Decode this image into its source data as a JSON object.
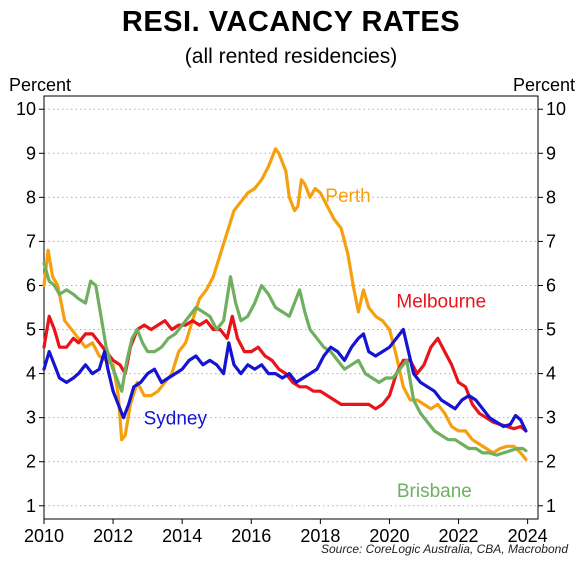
{
  "title": "RESI. VACANCY RATES",
  "subtitle": "(all rented residencies)",
  "y_axis_label_left": "Percent",
  "y_axis_label_right": "Percent",
  "source": "Source: CoreLogic Australia, CBA, Macrobond",
  "chart_data": {
    "type": "line",
    "xlim": [
      2010,
      2024.3
    ],
    "ylim": [
      0.7,
      10.3
    ],
    "x_ticks": [
      2010,
      2012,
      2014,
      2016,
      2018,
      2020,
      2022,
      2024
    ],
    "y_ticks": [
      1,
      2,
      3,
      4,
      5,
      6,
      7,
      8,
      9,
      10
    ],
    "grid": "horizontal dotted",
    "series": [
      {
        "name": "Perth",
        "color": "#F5A00F",
        "label_at": [
          2018.8,
          7.9
        ],
        "points": [
          [
            2010.0,
            6.0
          ],
          [
            2010.12,
            6.8
          ],
          [
            2010.25,
            6.2
          ],
          [
            2010.4,
            6.0
          ],
          [
            2010.6,
            5.2
          ],
          [
            2010.8,
            5.0
          ],
          [
            2011.0,
            4.8
          ],
          [
            2011.2,
            4.6
          ],
          [
            2011.4,
            4.7
          ],
          [
            2011.6,
            4.4
          ],
          [
            2011.8,
            4.3
          ],
          [
            2012.0,
            4.2
          ],
          [
            2012.15,
            3.5
          ],
          [
            2012.25,
            2.5
          ],
          [
            2012.35,
            2.6
          ],
          [
            2012.5,
            3.3
          ],
          [
            2012.7,
            3.8
          ],
          [
            2012.9,
            3.5
          ],
          [
            2013.1,
            3.5
          ],
          [
            2013.3,
            3.6
          ],
          [
            2013.5,
            3.8
          ],
          [
            2013.7,
            4.0
          ],
          [
            2013.9,
            4.5
          ],
          [
            2014.1,
            4.7
          ],
          [
            2014.3,
            5.2
          ],
          [
            2014.5,
            5.7
          ],
          [
            2014.7,
            5.9
          ],
          [
            2014.9,
            6.2
          ],
          [
            2015.1,
            6.7
          ],
          [
            2015.3,
            7.2
          ],
          [
            2015.5,
            7.7
          ],
          [
            2015.7,
            7.9
          ],
          [
            2015.9,
            8.1
          ],
          [
            2016.1,
            8.2
          ],
          [
            2016.3,
            8.4
          ],
          [
            2016.5,
            8.7
          ],
          [
            2016.7,
            9.1
          ],
          [
            2016.8,
            9.0
          ],
          [
            2017.0,
            8.6
          ],
          [
            2017.1,
            8.0
          ],
          [
            2017.25,
            7.7
          ],
          [
            2017.35,
            7.8
          ],
          [
            2017.45,
            8.4
          ],
          [
            2017.55,
            8.3
          ],
          [
            2017.7,
            8.0
          ],
          [
            2017.85,
            8.2
          ],
          [
            2018.0,
            8.1
          ],
          [
            2018.2,
            7.8
          ],
          [
            2018.4,
            7.5
          ],
          [
            2018.6,
            7.3
          ],
          [
            2018.8,
            6.7
          ],
          [
            2018.95,
            6.0
          ],
          [
            2019.1,
            5.4
          ],
          [
            2019.25,
            5.9
          ],
          [
            2019.4,
            5.5
          ],
          [
            2019.6,
            5.3
          ],
          [
            2019.8,
            5.2
          ],
          [
            2020.0,
            5.0
          ],
          [
            2020.2,
            4.4
          ],
          [
            2020.4,
            3.7
          ],
          [
            2020.6,
            3.4
          ],
          [
            2020.8,
            3.4
          ],
          [
            2021.0,
            3.3
          ],
          [
            2021.2,
            3.2
          ],
          [
            2021.4,
            3.3
          ],
          [
            2021.6,
            3.1
          ],
          [
            2021.8,
            2.8
          ],
          [
            2022.0,
            2.7
          ],
          [
            2022.2,
            2.7
          ],
          [
            2022.4,
            2.5
          ],
          [
            2022.6,
            2.4
          ],
          [
            2022.8,
            2.3
          ],
          [
            2023.0,
            2.2
          ],
          [
            2023.2,
            2.3
          ],
          [
            2023.4,
            2.35
          ],
          [
            2023.6,
            2.35
          ],
          [
            2023.8,
            2.2
          ],
          [
            2023.95,
            2.05
          ]
        ]
      },
      {
        "name": "Melbourne",
        "color": "#E8141A",
        "label_at": [
          2021.5,
          5.5
        ],
        "points": [
          [
            2010.0,
            4.6
          ],
          [
            2010.15,
            5.3
          ],
          [
            2010.3,
            5.0
          ],
          [
            2010.45,
            4.6
          ],
          [
            2010.65,
            4.6
          ],
          [
            2010.85,
            4.8
          ],
          [
            2011.0,
            4.7
          ],
          [
            2011.2,
            4.9
          ],
          [
            2011.4,
            4.9
          ],
          [
            2011.6,
            4.7
          ],
          [
            2011.8,
            4.5
          ],
          [
            2012.0,
            4.3
          ],
          [
            2012.2,
            4.2
          ],
          [
            2012.35,
            4.0
          ],
          [
            2012.5,
            4.6
          ],
          [
            2012.7,
            5.0
          ],
          [
            2012.9,
            5.1
          ],
          [
            2013.1,
            5.0
          ],
          [
            2013.3,
            5.1
          ],
          [
            2013.5,
            5.2
          ],
          [
            2013.7,
            5.0
          ],
          [
            2013.9,
            5.1
          ],
          [
            2014.1,
            5.1
          ],
          [
            2014.3,
            5.2
          ],
          [
            2014.5,
            5.1
          ],
          [
            2014.7,
            5.2
          ],
          [
            2014.9,
            5.0
          ],
          [
            2015.1,
            5.0
          ],
          [
            2015.3,
            4.8
          ],
          [
            2015.45,
            5.3
          ],
          [
            2015.6,
            4.8
          ],
          [
            2015.8,
            4.5
          ],
          [
            2016.0,
            4.5
          ],
          [
            2016.2,
            4.6
          ],
          [
            2016.4,
            4.4
          ],
          [
            2016.6,
            4.3
          ],
          [
            2016.8,
            4.1
          ],
          [
            2017.0,
            4.0
          ],
          [
            2017.2,
            3.8
          ],
          [
            2017.4,
            3.7
          ],
          [
            2017.6,
            3.7
          ],
          [
            2017.8,
            3.6
          ],
          [
            2018.0,
            3.6
          ],
          [
            2018.2,
            3.5
          ],
          [
            2018.4,
            3.4
          ],
          [
            2018.6,
            3.3
          ],
          [
            2018.8,
            3.3
          ],
          [
            2019.0,
            3.3
          ],
          [
            2019.2,
            3.3
          ],
          [
            2019.4,
            3.3
          ],
          [
            2019.6,
            3.2
          ],
          [
            2019.8,
            3.3
          ],
          [
            2020.0,
            3.5
          ],
          [
            2020.2,
            4.0
          ],
          [
            2020.4,
            4.3
          ],
          [
            2020.6,
            4.3
          ],
          [
            2020.8,
            4.0
          ],
          [
            2021.0,
            4.2
          ],
          [
            2021.2,
            4.6
          ],
          [
            2021.4,
            4.8
          ],
          [
            2021.6,
            4.5
          ],
          [
            2021.8,
            4.2
          ],
          [
            2022.0,
            3.8
          ],
          [
            2022.2,
            3.7
          ],
          [
            2022.4,
            3.3
          ],
          [
            2022.6,
            3.1
          ],
          [
            2022.8,
            3.0
          ],
          [
            2023.0,
            2.9
          ],
          [
            2023.2,
            2.85
          ],
          [
            2023.4,
            2.8
          ],
          [
            2023.6,
            2.75
          ],
          [
            2023.8,
            2.8
          ],
          [
            2023.95,
            2.7
          ]
        ]
      },
      {
        "name": "Brisbane",
        "color": "#6FAF5F",
        "label_at": [
          2021.3,
          1.2
        ],
        "points": [
          [
            2010.0,
            6.5
          ],
          [
            2010.15,
            6.1
          ],
          [
            2010.3,
            6.0
          ],
          [
            2010.45,
            5.8
          ],
          [
            2010.65,
            5.9
          ],
          [
            2010.85,
            5.8
          ],
          [
            2011.0,
            5.7
          ],
          [
            2011.2,
            5.6
          ],
          [
            2011.35,
            6.1
          ],
          [
            2011.5,
            6.0
          ],
          [
            2011.65,
            5.3
          ],
          [
            2011.8,
            4.6
          ],
          [
            2011.95,
            4.2
          ],
          [
            2012.1,
            3.9
          ],
          [
            2012.25,
            3.6
          ],
          [
            2012.4,
            4.3
          ],
          [
            2012.55,
            4.8
          ],
          [
            2012.7,
            5.0
          ],
          [
            2012.85,
            4.7
          ],
          [
            2013.0,
            4.5
          ],
          [
            2013.2,
            4.5
          ],
          [
            2013.4,
            4.6
          ],
          [
            2013.6,
            4.8
          ],
          [
            2013.8,
            4.9
          ],
          [
            2014.0,
            5.1
          ],
          [
            2014.2,
            5.3
          ],
          [
            2014.4,
            5.5
          ],
          [
            2014.6,
            5.4
          ],
          [
            2014.8,
            5.3
          ],
          [
            2015.0,
            5.0
          ],
          [
            2015.2,
            5.2
          ],
          [
            2015.4,
            6.2
          ],
          [
            2015.55,
            5.6
          ],
          [
            2015.7,
            5.2
          ],
          [
            2015.9,
            5.3
          ],
          [
            2016.1,
            5.6
          ],
          [
            2016.3,
            6.0
          ],
          [
            2016.5,
            5.8
          ],
          [
            2016.7,
            5.5
          ],
          [
            2016.9,
            5.4
          ],
          [
            2017.1,
            5.3
          ],
          [
            2017.3,
            5.7
          ],
          [
            2017.4,
            5.9
          ],
          [
            2017.55,
            5.4
          ],
          [
            2017.7,
            5.0
          ],
          [
            2017.9,
            4.8
          ],
          [
            2018.1,
            4.6
          ],
          [
            2018.3,
            4.5
          ],
          [
            2018.5,
            4.3
          ],
          [
            2018.7,
            4.1
          ],
          [
            2018.9,
            4.2
          ],
          [
            2019.1,
            4.3
          ],
          [
            2019.3,
            4.0
          ],
          [
            2019.5,
            3.9
          ],
          [
            2019.7,
            3.8
          ],
          [
            2019.9,
            3.9
          ],
          [
            2020.1,
            3.9
          ],
          [
            2020.3,
            4.1
          ],
          [
            2020.5,
            4.3
          ],
          [
            2020.7,
            3.4
          ],
          [
            2020.9,
            3.1
          ],
          [
            2021.1,
            2.9
          ],
          [
            2021.3,
            2.7
          ],
          [
            2021.5,
            2.6
          ],
          [
            2021.7,
            2.5
          ],
          [
            2021.9,
            2.5
          ],
          [
            2022.1,
            2.4
          ],
          [
            2022.3,
            2.3
          ],
          [
            2022.5,
            2.3
          ],
          [
            2022.7,
            2.2
          ],
          [
            2022.9,
            2.2
          ],
          [
            2023.1,
            2.15
          ],
          [
            2023.3,
            2.2
          ],
          [
            2023.5,
            2.25
          ],
          [
            2023.7,
            2.3
          ],
          [
            2023.85,
            2.3
          ],
          [
            2023.95,
            2.25
          ]
        ]
      },
      {
        "name": "Sydney",
        "color": "#1414D2",
        "label_at": [
          2013.8,
          2.85
        ],
        "points": [
          [
            2010.0,
            4.1
          ],
          [
            2010.15,
            4.5
          ],
          [
            2010.3,
            4.2
          ],
          [
            2010.45,
            3.9
          ],
          [
            2010.65,
            3.8
          ],
          [
            2010.85,
            3.9
          ],
          [
            2011.0,
            4.0
          ],
          [
            2011.2,
            4.2
          ],
          [
            2011.4,
            4.0
          ],
          [
            2011.6,
            4.1
          ],
          [
            2011.75,
            4.5
          ],
          [
            2011.85,
            4.1
          ],
          [
            2012.0,
            3.6
          ],
          [
            2012.15,
            3.3
          ],
          [
            2012.3,
            3.0
          ],
          [
            2012.45,
            3.3
          ],
          [
            2012.6,
            3.7
          ],
          [
            2012.8,
            3.8
          ],
          [
            2013.0,
            4.0
          ],
          [
            2013.2,
            4.1
          ],
          [
            2013.4,
            3.8
          ],
          [
            2013.6,
            3.9
          ],
          [
            2013.8,
            4.0
          ],
          [
            2014.0,
            4.1
          ],
          [
            2014.2,
            4.3
          ],
          [
            2014.4,
            4.4
          ],
          [
            2014.6,
            4.2
          ],
          [
            2014.8,
            4.3
          ],
          [
            2015.0,
            4.2
          ],
          [
            2015.2,
            4.0
          ],
          [
            2015.35,
            4.7
          ],
          [
            2015.5,
            4.2
          ],
          [
            2015.7,
            4.0
          ],
          [
            2015.9,
            4.2
          ],
          [
            2016.1,
            4.1
          ],
          [
            2016.3,
            4.2
          ],
          [
            2016.5,
            4.0
          ],
          [
            2016.7,
            4.0
          ],
          [
            2016.9,
            3.9
          ],
          [
            2017.1,
            4.0
          ],
          [
            2017.3,
            3.8
          ],
          [
            2017.5,
            3.9
          ],
          [
            2017.7,
            4.0
          ],
          [
            2017.9,
            4.1
          ],
          [
            2018.1,
            4.4
          ],
          [
            2018.3,
            4.6
          ],
          [
            2018.5,
            4.5
          ],
          [
            2018.7,
            4.3
          ],
          [
            2018.9,
            4.6
          ],
          [
            2019.1,
            4.8
          ],
          [
            2019.25,
            4.9
          ],
          [
            2019.4,
            4.5
          ],
          [
            2019.6,
            4.4
          ],
          [
            2019.8,
            4.5
          ],
          [
            2020.0,
            4.6
          ],
          [
            2020.2,
            4.8
          ],
          [
            2020.4,
            5.0
          ],
          [
            2020.55,
            4.5
          ],
          [
            2020.7,
            4.0
          ],
          [
            2020.9,
            3.8
          ],
          [
            2021.1,
            3.7
          ],
          [
            2021.3,
            3.6
          ],
          [
            2021.5,
            3.4
          ],
          [
            2021.7,
            3.3
          ],
          [
            2021.9,
            3.2
          ],
          [
            2022.1,
            3.4
          ],
          [
            2022.3,
            3.5
          ],
          [
            2022.5,
            3.4
          ],
          [
            2022.7,
            3.2
          ],
          [
            2022.9,
            3.0
          ],
          [
            2023.1,
            2.9
          ],
          [
            2023.3,
            2.8
          ],
          [
            2023.5,
            2.85
          ],
          [
            2023.65,
            3.05
          ],
          [
            2023.8,
            2.95
          ],
          [
            2023.95,
            2.7
          ]
        ]
      }
    ]
  }
}
